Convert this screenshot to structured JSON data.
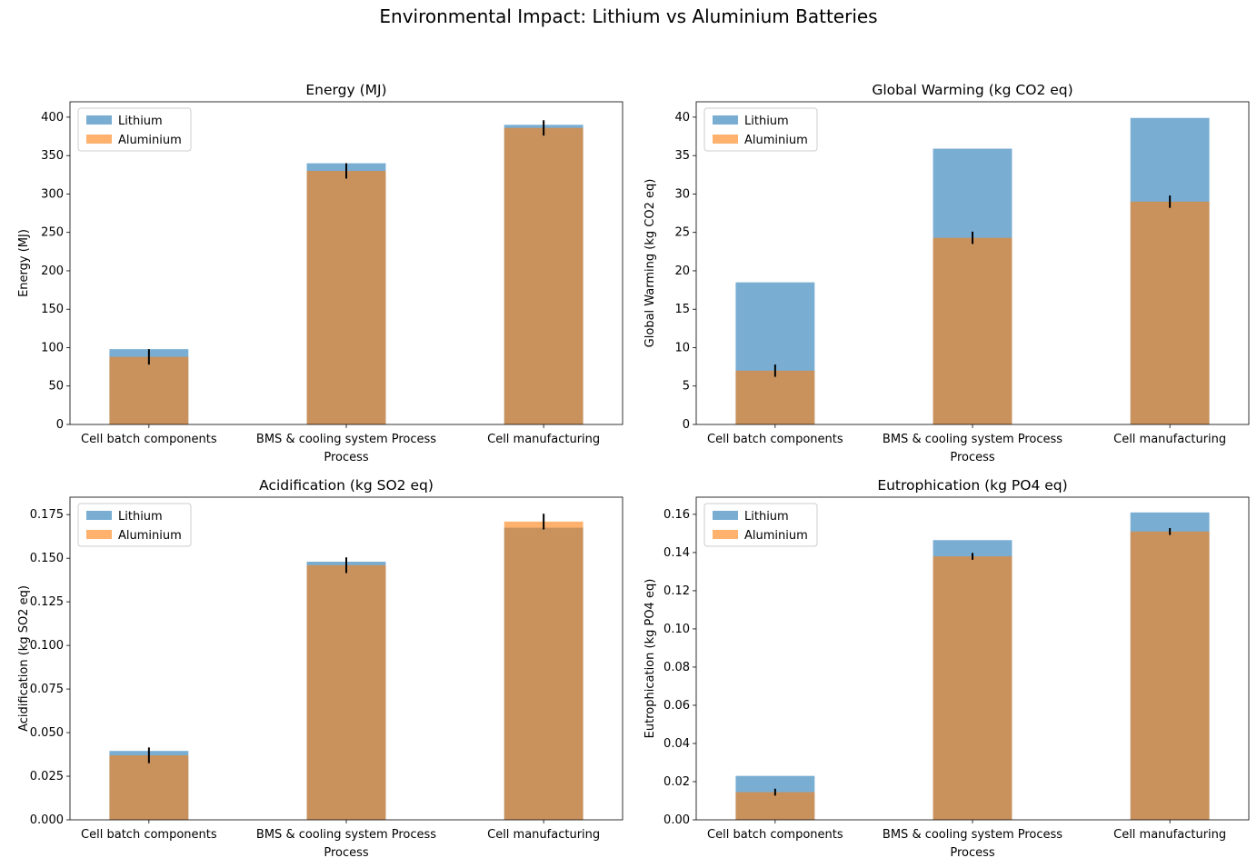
{
  "figure": {
    "title": "Environmental Impact: Lithium vs Aluminium Batteries"
  },
  "colors": {
    "lithium": "#1f77b4",
    "aluminium": "#ff7f0e",
    "bar_alpha": 0.6,
    "error_bar": "#000000"
  },
  "chart_data": [
    {
      "type": "bar",
      "title": "Energy (MJ)",
      "xlabel": "Process",
      "ylabel": "Energy (MJ)",
      "categories": [
        "Cell batch components",
        "BMS & cooling system Process",
        "Cell manufacturing"
      ],
      "ylim": [
        0,
        420
      ],
      "yticks": [
        0,
        50,
        100,
        150,
        200,
        250,
        300,
        350,
        400
      ],
      "ytick_labels": [
        "0",
        "50",
        "100",
        "150",
        "200",
        "250",
        "300",
        "350",
        "400"
      ],
      "legend": "top-left",
      "series": [
        {
          "name": "Lithium",
          "values": [
            98,
            340,
            390
          ]
        },
        {
          "name": "Aluminium",
          "values": [
            88,
            330,
            386
          ],
          "errors": [
            10,
            10,
            10
          ]
        }
      ]
    },
    {
      "type": "bar",
      "title": "Global Warming (kg CO2 eq)",
      "xlabel": "Process",
      "ylabel": "Global Warming (kg CO2 eq)",
      "categories": [
        "Cell batch components",
        "BMS & cooling system Process",
        "Cell manufacturing"
      ],
      "ylim": [
        0,
        42
      ],
      "yticks": [
        0,
        5,
        10,
        15,
        20,
        25,
        30,
        35,
        40
      ],
      "ytick_labels": [
        "0",
        "5",
        "10",
        "15",
        "20",
        "25",
        "30",
        "35",
        "40"
      ],
      "legend": "top-left",
      "series": [
        {
          "name": "Lithium",
          "values": [
            18.5,
            35.9,
            39.9
          ]
        },
        {
          "name": "Aluminium",
          "values": [
            7.0,
            24.3,
            29.0
          ],
          "errors": [
            0.8,
            0.8,
            0.8
          ]
        }
      ]
    },
    {
      "type": "bar",
      "title": "Acidification (kg SO2 eq)",
      "xlabel": "Process",
      "ylabel": "Acidification (kg SO2 eq)",
      "categories": [
        "Cell batch components",
        "BMS & cooling system Process",
        "Cell manufacturing"
      ],
      "ylim": [
        0,
        0.185
      ],
      "yticks": [
        0,
        0.025,
        0.05,
        0.075,
        0.1,
        0.125,
        0.15,
        0.175
      ],
      "ytick_labels": [
        "0.000",
        "0.025",
        "0.050",
        "0.075",
        "0.100",
        "0.125",
        "0.150",
        "0.175"
      ],
      "legend": "top-left",
      "series": [
        {
          "name": "Lithium",
          "values": [
            0.0395,
            0.148,
            0.1675
          ]
        },
        {
          "name": "Aluminium",
          "values": [
            0.037,
            0.146,
            0.171
          ],
          "errors": [
            0.0045,
            0.0045,
            0.0045
          ]
        }
      ]
    },
    {
      "type": "bar",
      "title": "Eutrophication (kg PO4 eq)",
      "xlabel": "Process",
      "ylabel": "Eutrophication (kg PO4 eq)",
      "categories": [
        "Cell batch components",
        "BMS & cooling system Process",
        "Cell manufacturing"
      ],
      "ylim": [
        0,
        0.169
      ],
      "yticks": [
        0,
        0.02,
        0.04,
        0.06,
        0.08,
        0.1,
        0.12,
        0.14,
        0.16
      ],
      "ytick_labels": [
        "0.00",
        "0.02",
        "0.04",
        "0.06",
        "0.08",
        "0.10",
        "0.12",
        "0.14",
        "0.16"
      ],
      "legend": "top-left",
      "series": [
        {
          "name": "Lithium",
          "values": [
            0.023,
            0.1465,
            0.161
          ]
        },
        {
          "name": "Aluminium",
          "values": [
            0.0145,
            0.138,
            0.151
          ],
          "errors": [
            0.0018,
            0.0018,
            0.0018
          ]
        }
      ]
    }
  ]
}
